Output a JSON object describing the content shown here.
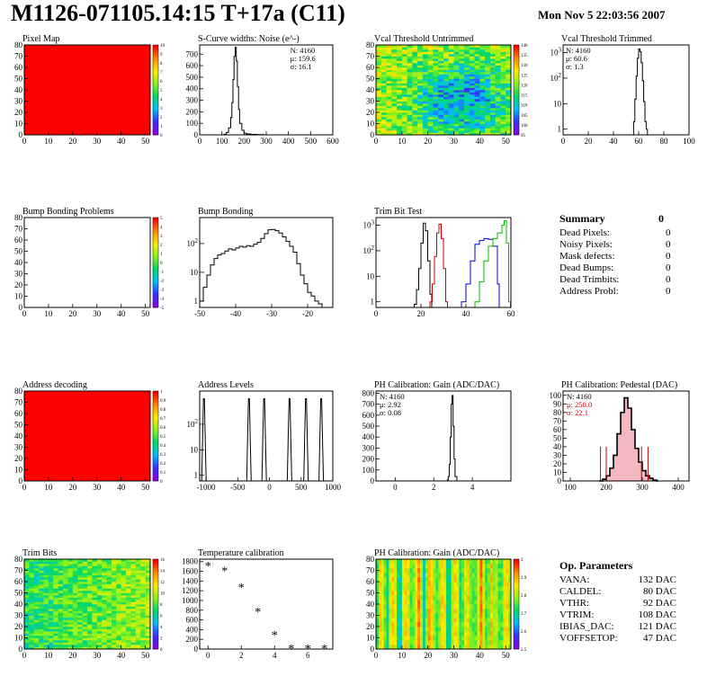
{
  "header": {
    "title": "M1126-071105.14:15 T+17a (C11)",
    "date": "Mon Nov  5 22:03:56 2007"
  },
  "summary": {
    "title": "Summary",
    "total": "0",
    "rows": [
      {
        "label": "Dead Pixels:",
        "value": "0"
      },
      {
        "label": "Noisy Pixels:",
        "value": "0"
      },
      {
        "label": "Mask defects:",
        "value": "0"
      },
      {
        "label": "Dead Bumps:",
        "value": "0"
      },
      {
        "label": "Dead Trimbits:",
        "value": "0"
      },
      {
        "label": "Address Probl:",
        "value": "0"
      }
    ]
  },
  "op_parameters": {
    "title": "Op. Parameters",
    "rows": [
      {
        "label": "VANA:",
        "value": "132 DAC"
      },
      {
        "label": "CALDEL:",
        "value": "80 DAC"
      },
      {
        "label": "VTHR:",
        "value": "92 DAC"
      },
      {
        "label": "VTRIM:",
        "value": "108 DAC"
      },
      {
        "label": "IBIAS_DAC:",
        "value": "121 DAC"
      },
      {
        "label": "VOFFSETOP:",
        "value": "47 DAC"
      }
    ]
  },
  "colors": {
    "black": "#000000",
    "red": "#cc0000",
    "blue": "#0000cc",
    "green": "#00bb00"
  },
  "chart_data": [
    {
      "id": "pixel-map",
      "type": "heatmap",
      "title": "Pixel Map",
      "xlim": [
        0,
        52
      ],
      "ylim": [
        0,
        80
      ],
      "xticks": [
        0,
        10,
        20,
        30,
        40,
        50
      ],
      "yticks": [
        0,
        10,
        20,
        30,
        40,
        50,
        60,
        70,
        80
      ],
      "fill": "uniform",
      "colorscale": [
        "0",
        "1",
        "2",
        "3",
        "4",
        "5",
        "6",
        "7",
        "8",
        "9",
        "10"
      ]
    },
    {
      "id": "scurve-noise",
      "type": "line",
      "title": "S-Curve widths: Noise (e^-)",
      "xlim": [
        0,
        600
      ],
      "ylim": [
        0,
        780
      ],
      "xticks": [
        0,
        100,
        200,
        300,
        400,
        500,
        600
      ],
      "yticks": [
        0,
        100,
        200,
        300,
        400,
        500,
        600,
        700
      ],
      "stats": [
        "N: 4160",
        "μ: 159.6",
        "σ: 16.1"
      ],
      "x": [
        90,
        110,
        120,
        130,
        140,
        145,
        150,
        155,
        160,
        165,
        170,
        175,
        180,
        190,
        200,
        210,
        230,
        260,
        290
      ],
      "y": [
        0,
        5,
        20,
        60,
        150,
        280,
        480,
        680,
        760,
        640,
        420,
        220,
        100,
        40,
        15,
        8,
        4,
        2,
        0
      ]
    },
    {
      "id": "vcal-untrimmed",
      "type": "heatmap",
      "title": "Vcal Threshold Untrimmed",
      "xlim": [
        0,
        52
      ],
      "ylim": [
        0,
        80
      ],
      "xticks": [
        0,
        10,
        20,
        30,
        40,
        50
      ],
      "yticks": [
        0,
        10,
        20,
        30,
        40,
        50,
        60,
        70,
        80
      ],
      "fill": "noise",
      "colorscale": [
        "95",
        "100",
        "105",
        "110",
        "115",
        "120",
        "125",
        "130",
        "135",
        "140"
      ]
    },
    {
      "id": "vcal-trimmed",
      "type": "line",
      "title": "Vcal Threshold Trimmed",
      "log": true,
      "xlim": [
        0,
        100
      ],
      "ylim": [
        0.6,
        2000
      ],
      "xticks": [
        0,
        20,
        40,
        60,
        80,
        100
      ],
      "ytick_labels": [
        "1",
        "10",
        "10^2",
        "10^3"
      ],
      "stats": [
        "N: 4160",
        "μ: 60.6",
        "σ:  1.3"
      ],
      "x": [
        54,
        56,
        57,
        58,
        59,
        60,
        61,
        62,
        63,
        64,
        65,
        66,
        67
      ],
      "y": [
        0.6,
        2,
        15,
        120,
        600,
        1400,
        1100,
        400,
        80,
        12,
        2,
        1,
        0.6
      ]
    },
    {
      "id": "bump-bonding-problems",
      "type": "heatmap",
      "title": "Bump Bonding Problems",
      "xlim": [
        0,
        52
      ],
      "ylim": [
        0,
        80
      ],
      "xticks": [
        0,
        10,
        20,
        30,
        40,
        50
      ],
      "yticks": [
        0,
        10,
        20,
        30,
        40,
        50,
        60,
        70,
        80
      ],
      "fill": "empty",
      "colorscale": [
        "-5",
        "-4",
        "-3",
        "-2",
        "-1",
        "0",
        "1",
        "2",
        "3",
        "4",
        "5"
      ]
    },
    {
      "id": "bump-bonding",
      "type": "line",
      "title": "Bump Bonding",
      "log": true,
      "xlim": [
        -50,
        -13
      ],
      "ylim": [
        0.6,
        800
      ],
      "xticks": [
        -50,
        -40,
        -30,
        -20
      ],
      "ytick_labels": [
        "1",
        "10",
        "10^2"
      ],
      "x": [
        -50,
        -49,
        -48,
        -47,
        -46,
        -45,
        -44,
        -43,
        -42,
        -41,
        -40,
        -39,
        -38,
        -37,
        -36,
        -35,
        -34,
        -33,
        -32,
        -31,
        -30,
        -29,
        -28,
        -27,
        -26,
        -25,
        -24,
        -23,
        -22,
        -21,
        -20,
        -19,
        -18,
        -17,
        -16
      ],
      "y": [
        1,
        3,
        8,
        18,
        30,
        40,
        45,
        55,
        65,
        60,
        70,
        80,
        75,
        85,
        80,
        95,
        110,
        150,
        220,
        300,
        310,
        280,
        230,
        170,
        120,
        80,
        50,
        20,
        8,
        4,
        2,
        1.5,
        1,
        0.8,
        0.6
      ]
    },
    {
      "id": "trim-bit-test",
      "type": "line",
      "title": "Trim Bit Test",
      "log": true,
      "xlim": [
        0,
        60
      ],
      "ylim": [
        0.6,
        2000
      ],
      "xticks": [
        0,
        20,
        40,
        60
      ],
      "ytick_labels": [
        "1",
        "10",
        "10^2",
        "10^3"
      ],
      "series": [
        {
          "color": "black",
          "x": [
            17,
            18,
            19,
            20,
            21,
            22,
            23,
            24
          ],
          "y": [
            0.8,
            3,
            20,
            200,
            1200,
            600,
            40,
            2
          ]
        },
        {
          "color": "red",
          "x": [
            24,
            25,
            26,
            27,
            28,
            29,
            30,
            31
          ],
          "y": [
            1,
            5,
            60,
            500,
            1100,
            300,
            20,
            1
          ]
        },
        {
          "color": "blue",
          "x": [
            38,
            40,
            42,
            44,
            46,
            48,
            50,
            52,
            54
          ],
          "y": [
            1,
            5,
            40,
            180,
            250,
            300,
            280,
            150,
            5
          ]
        },
        {
          "color": "green",
          "x": [
            44,
            46,
            48,
            50,
            52,
            54,
            56,
            57,
            58,
            59
          ],
          "y": [
            1,
            6,
            40,
            150,
            300,
            500,
            1000,
            1500,
            200,
            1
          ]
        }
      ]
    },
    {
      "id": "address-decoding",
      "type": "heatmap",
      "title": "Address decoding",
      "xlim": [
        0,
        52
      ],
      "ylim": [
        0,
        80
      ],
      "xticks": [
        0,
        10,
        20,
        30,
        40,
        50
      ],
      "yticks": [
        0,
        10,
        20,
        30,
        40,
        50,
        60,
        70,
        80
      ],
      "fill": "uniform",
      "colorscale": [
        "0",
        "0.1",
        "0.2",
        "0.3",
        "0.4",
        "0.5",
        "0.6",
        "0.7",
        "0.8",
        "0.9",
        "1"
      ]
    },
    {
      "id": "address-levels",
      "type": "line",
      "title": "Address Levels",
      "log": true,
      "xlim": [
        -1100,
        1000
      ],
      "ylim": [
        0.6,
        2000
      ],
      "xticks": [
        -1000,
        -500,
        0,
        500,
        1000
      ],
      "ytick_labels": [
        "1",
        "10",
        "10^2"
      ],
      "peaks": [
        -1040,
        -330,
        -90,
        310,
        570,
        810
      ]
    },
    {
      "id": "ph-gain",
      "type": "line",
      "title": "PH Calibration: Gain (ADC/DAC)",
      "xlim": [
        -1,
        6
      ],
      "ylim": [
        0,
        820
      ],
      "xticks": [
        0,
        2,
        4
      ],
      "yticks": [
        0,
        100,
        200,
        300,
        400,
        500,
        600,
        700,
        800
      ],
      "stats": [
        "N: 4160",
        "μ: 2.92",
        "σ: 0.08"
      ],
      "x": [
        2.6,
        2.7,
        2.75,
        2.8,
        2.85,
        2.9,
        2.95,
        3.0,
        3.05,
        3.1,
        3.2
      ],
      "y": [
        0,
        10,
        40,
        150,
        400,
        700,
        780,
        500,
        200,
        40,
        0
      ]
    },
    {
      "id": "ph-pedestal",
      "type": "area",
      "title": "PH Calibration: Pedestal (DAC)",
      "xlim": [
        80,
        430
      ],
      "ylim": [
        0,
        105
      ],
      "xticks": [
        100,
        200,
        300,
        400
      ],
      "yticks": [
        0,
        10,
        20,
        30,
        40,
        50,
        60,
        70,
        80,
        90,
        100
      ],
      "stats": [
        "N: 4160",
        "μ: 250.0",
        "σ: 22.1"
      ],
      "x": [
        180,
        190,
        200,
        210,
        220,
        230,
        240,
        250,
        260,
        270,
        280,
        290,
        300,
        310,
        320,
        330,
        340
      ],
      "y": [
        0,
        2,
        6,
        15,
        30,
        55,
        80,
        97,
        85,
        60,
        38,
        22,
        12,
        6,
        3,
        1,
        0
      ],
      "marker_lines": [
        184,
        200,
        298,
        316
      ]
    },
    {
      "id": "trim-bits",
      "type": "heatmap",
      "title": "Trim Bits",
      "xlim": [
        0,
        52
      ],
      "ylim": [
        0,
        80
      ],
      "xticks": [
        0,
        10,
        20,
        30,
        40,
        50
      ],
      "yticks": [
        0,
        10,
        20,
        30,
        40,
        50,
        60,
        70,
        80
      ],
      "fill": "noise",
      "colorscale": [
        "0",
        "2",
        "4",
        "6",
        "8",
        "10",
        "12",
        "14",
        "16"
      ]
    },
    {
      "id": "temperature-calibration",
      "type": "scatter",
      "title": "Temperature calibration",
      "xlim": [
        -0.5,
        7.5
      ],
      "ylim": [
        0,
        1850
      ],
      "xticks": [
        0,
        2,
        4,
        6
      ],
      "yticks": [
        0,
        200,
        400,
        600,
        800,
        1000,
        1200,
        1400,
        1600,
        1800
      ],
      "x": [
        0,
        1,
        2,
        3,
        4,
        5,
        6,
        7
      ],
      "y": [
        1720,
        1620,
        1280,
        780,
        300,
        20,
        20,
        20
      ]
    },
    {
      "id": "ph-gain-map",
      "type": "heatmap",
      "title": "PH Calibration: Gain (ADC/DAC)",
      "xlim": [
        0,
        52
      ],
      "ylim": [
        0,
        80
      ],
      "xticks": [
        0,
        10,
        20,
        30,
        40,
        50
      ],
      "yticks": [
        0,
        10,
        20,
        30,
        40,
        50,
        60,
        70,
        80
      ],
      "fill": "stripes",
      "colorscale": [
        "2.5",
        "2.6",
        "2.7",
        "2.8",
        "2.9",
        "3"
      ]
    }
  ]
}
